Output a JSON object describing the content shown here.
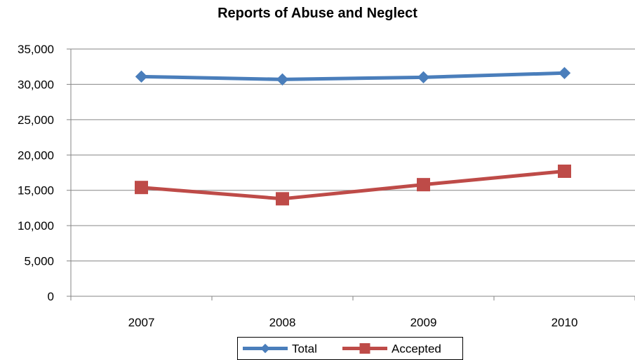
{
  "chart_data": {
    "type": "line",
    "title": "Reports of Abuse and Neglect",
    "xlabel": "",
    "ylabel": "",
    "categories": [
      "2007",
      "2008",
      "2009",
      "2010"
    ],
    "ylim": [
      0,
      35000
    ],
    "yticks": [
      0,
      5000,
      10000,
      15000,
      20000,
      25000,
      30000,
      35000
    ],
    "ytick_labels": [
      "0",
      "5,000",
      "10,000",
      "15,000",
      "20,000",
      "25,000",
      "30,000",
      "35,000"
    ],
    "grid": true,
    "legend_position": "bottom",
    "series": [
      {
        "name": "Total",
        "values": [
          31100,
          30700,
          31000,
          31600
        ],
        "color": "#4a7ebb",
        "marker": "diamond"
      },
      {
        "name": "Accepted",
        "values": [
          15400,
          13800,
          15800,
          17700
        ],
        "color": "#be4b48",
        "marker": "square"
      }
    ]
  }
}
